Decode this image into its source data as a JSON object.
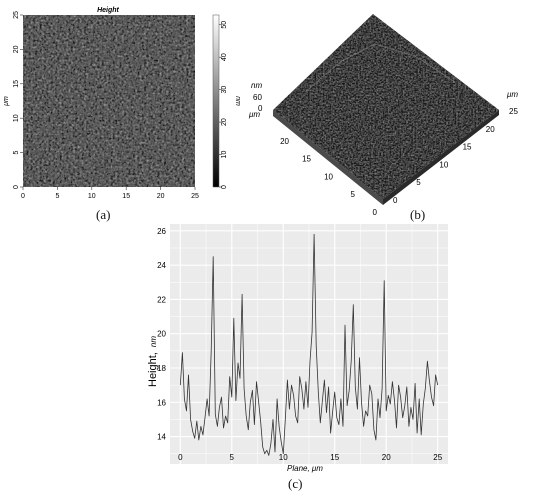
{
  "panel_a": {
    "label": "(a)",
    "title": "Height",
    "x_ticks": [
      "0",
      "5",
      "10",
      "15",
      "20",
      "25"
    ],
    "y_ticks": [
      "0",
      "5",
      "10",
      "15",
      "20",
      "25"
    ],
    "y_unit": "μm",
    "colorbar_ticks": [
      "0",
      "10",
      "20",
      "30",
      "40",
      "50"
    ],
    "colorbar_unit": "nm",
    "colors": {
      "dark": "#1a1a1a",
      "light": "#6a6a6a"
    }
  },
  "panel_b": {
    "label": "(b)",
    "z_unit": "nm",
    "z_ticks": [
      "60",
      "0"
    ],
    "left_unit": "μm",
    "left_ticks": [
      "20",
      "15",
      "10",
      "5",
      "0"
    ],
    "right_unit": "μm",
    "right_ticks": [
      "25",
      "20",
      "15",
      "10",
      "5",
      "0"
    ]
  },
  "chart_data": {
    "type": "line",
    "label": "(c)",
    "xlabel": "Plane, μm",
    "ylabel_main": "Height,",
    "ylabel_unit": "nm",
    "xlim": [
      -1,
      26
    ],
    "ylim": [
      12.4,
      26.4
    ],
    "x_ticks": [
      0,
      5,
      10,
      15,
      20,
      25
    ],
    "y_ticks": [
      14,
      16,
      18,
      20,
      22,
      24,
      26
    ],
    "grid": true,
    "line_color": "#333333",
    "series": [
      {
        "x": [
          0,
          0.2,
          0.4,
          0.6,
          0.8,
          1.0,
          1.2,
          1.4,
          1.6,
          1.8,
          2.0,
          2.2,
          2.4,
          2.6,
          2.8,
          3.0,
          3.2,
          3.4,
          3.6,
          3.8,
          4.0,
          4.2,
          4.4,
          4.6,
          4.8,
          5.0,
          5.2,
          5.4,
          5.6,
          5.8,
          6.0,
          6.2,
          6.4,
          6.6,
          6.8,
          7.0,
          7.2,
          7.4,
          7.6,
          7.8,
          8.0,
          8.2,
          8.4,
          8.6,
          8.8,
          9.0,
          9.2,
          9.4,
          9.6,
          9.8,
          10.0,
          10.2,
          10.4,
          10.6,
          10.8,
          11.0,
          11.2,
          11.4,
          11.6,
          11.8,
          12.0,
          12.2,
          12.4,
          12.6,
          12.8,
          13.0,
          13.2,
          13.4,
          13.6,
          13.8,
          14.0,
          14.2,
          14.4,
          14.6,
          14.8,
          15.0,
          15.2,
          15.4,
          15.6,
          15.8,
          16.0,
          16.2,
          16.4,
          16.6,
          16.8,
          17.0,
          17.2,
          17.4,
          17.6,
          17.8,
          18.0,
          18.2,
          18.4,
          18.6,
          18.8,
          19.0,
          19.2,
          19.4,
          19.6,
          19.8,
          20.0,
          20.2,
          20.4,
          20.6,
          20.8,
          21.0,
          21.2,
          21.4,
          21.6,
          21.8,
          22.0,
          22.2,
          22.4,
          22.6,
          22.8,
          23.0,
          23.2,
          23.4,
          23.6,
          23.8,
          24.0,
          24.2,
          24.4,
          24.6,
          24.8,
          25.0
        ],
        "y": [
          17.0,
          18.9,
          16.2,
          15.5,
          17.6,
          15.0,
          14.3,
          13.9,
          14.9,
          13.8,
          14.6,
          14.1,
          15.1,
          16.2,
          15.2,
          19.0,
          24.5,
          15.3,
          14.6,
          15.7,
          16.3,
          14.5,
          15.2,
          14.8,
          17.5,
          16.3,
          20.9,
          16.1,
          18.3,
          17.4,
          22.3,
          16.8,
          15.2,
          14.4,
          16.0,
          16.7,
          14.7,
          17.2,
          16.1,
          14.9,
          13.4,
          13.0,
          13.2,
          12.9,
          13.6,
          15.0,
          13.1,
          16.2,
          14.6,
          13.7,
          13.0,
          15.0,
          17.3,
          15.6,
          17.0,
          16.4,
          15.2,
          14.8,
          17.5,
          16.8,
          15.6,
          17.2,
          15.7,
          18.4,
          20.1,
          25.8,
          19.3,
          16.6,
          14.8,
          16.1,
          17.3,
          15.4,
          16.9,
          14.2,
          15.5,
          16.6,
          15.1,
          14.7,
          16.2,
          14.6,
          20.5,
          15.8,
          16.7,
          18.4,
          21.7,
          16.9,
          15.6,
          18.6,
          16.0,
          14.6,
          15.5,
          15.2,
          17.0,
          16.5,
          14.4,
          13.8,
          16.2,
          15.1,
          16.8,
          23.1,
          15.5,
          16.4,
          15.9,
          17.2,
          16.1,
          14.5,
          17.0,
          16.3,
          15.1,
          15.8,
          16.9,
          14.6,
          15.7,
          15.0,
          17.1,
          14.2,
          16.2,
          14.1,
          15.9,
          16.8,
          18.4,
          17.2,
          16.3,
          15.8,
          17.6,
          17.0
        ]
      }
    ]
  }
}
